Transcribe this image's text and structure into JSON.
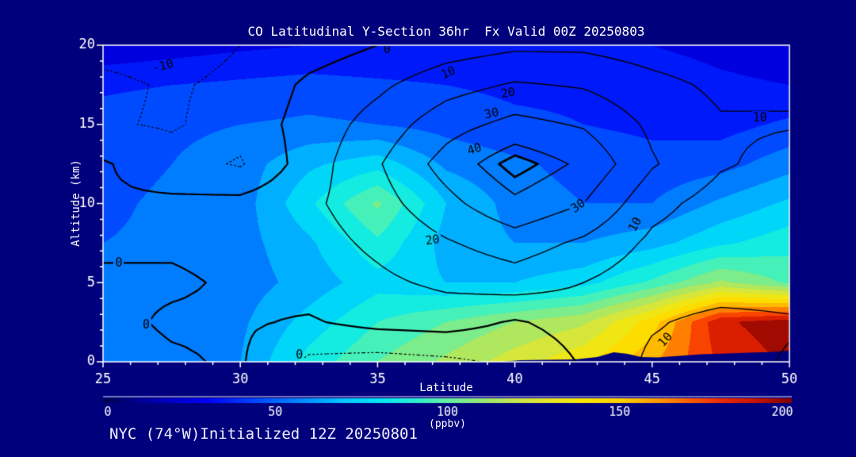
{
  "page": {
    "colors": {
      "background": "#00007d",
      "frame": "#ffffff",
      "text": "#ffffff",
      "contour_line": "#000000",
      "terrain": "#00007d"
    }
  },
  "footer": {
    "text": "NYC (74°W)Initialized 12Z 20250801"
  },
  "chart_data": {
    "type": "heatmap",
    "title": "CO Latitudinal Y-Section 36hr  Fx Valid 00Z 20250803",
    "xlabel": "Latitude",
    "ylabel": "Altitude (km)",
    "x_range": [
      25,
      50
    ],
    "y_range": [
      0,
      20
    ],
    "x_ticks": [
      25,
      30,
      35,
      40,
      45,
      50
    ],
    "x_minor_step": 1,
    "y_ticks": [
      0,
      5,
      10,
      15,
      20
    ],
    "y_minor_step": 1,
    "grid": false,
    "fill_units": "ppbv",
    "fill_band_step": 10,
    "lat_nodes": [
      25,
      27.5,
      30,
      32.5,
      35,
      37.5,
      40,
      42.5,
      45,
      47.5,
      50
    ],
    "alt_nodes": [
      20,
      17.5,
      15,
      12.5,
      10,
      7.5,
      5,
      2.5,
      0
    ],
    "fill_grid": [
      [
        22,
        25,
        28,
        30,
        30,
        30,
        32,
        33,
        30,
        27,
        24
      ],
      [
        38,
        40,
        42,
        44,
        42,
        40,
        38,
        38,
        36,
        32,
        30
      ],
      [
        45,
        48,
        50,
        52,
        50,
        46,
        42,
        40,
        38,
        36,
        42
      ],
      [
        46,
        50,
        55,
        68,
        76,
        58,
        52,
        46,
        43,
        46,
        56
      ],
      [
        48,
        52,
        55,
        78,
        102,
        70,
        56,
        50,
        50,
        62,
        72
      ],
      [
        50,
        52,
        56,
        68,
        88,
        66,
        60,
        60,
        66,
        78,
        86
      ],
      [
        52,
        50,
        55,
        64,
        76,
        70,
        70,
        76,
        92,
        112,
        98
      ],
      [
        55,
        54,
        58,
        74,
        90,
        100,
        110,
        118,
        145,
        188,
        196
      ],
      [
        56,
        58,
        60,
        84,
        100,
        112,
        125,
        138,
        158,
        182,
        192
      ]
    ],
    "contour_grid": [
      [
        -13,
        -14,
        -10,
        -5,
        0,
        5,
        8,
        8,
        5,
        3,
        2
      ],
      [
        -8,
        -11,
        -8,
        2,
        8,
        16,
        21,
        19,
        13,
        8,
        9
      ],
      [
        -9,
        -11,
        -6,
        4,
        14,
        26,
        33,
        29,
        18,
        11,
        10.5
      ],
      [
        1,
        -6,
        -11,
        5,
        19,
        34,
        47,
        38,
        21,
        11,
        7
      ],
      [
        1,
        2,
        3,
        8,
        16,
        27,
        38,
        30,
        13,
        6,
        5
      ],
      [
        1,
        1,
        2,
        6,
        12,
        19,
        25,
        18,
        8,
        4,
        3
      ],
      [
        -1,
        -1,
        1,
        4,
        8,
        12,
        15,
        10,
        4,
        5,
        6
      ],
      [
        -2,
        1,
        1,
        -1,
        3,
        4,
        -1,
        4,
        9,
        13,
        11
      ],
      [
        -3,
        -1,
        1,
        -12,
        -14,
        -12,
        -8,
        1,
        12,
        14,
        9
      ]
    ],
    "contour_levels": [
      -10,
      0,
      10,
      20,
      30,
      40,
      44
    ],
    "contour_labels": [
      {
        "text": "-10",
        "x": 8.7,
        "y": 6.5,
        "rot": -14
      },
      {
        "text": "0",
        "x": 41.4,
        "y": 1.2,
        "rot": 0
      },
      {
        "text": "10",
        "x": 50.3,
        "y": 8.6,
        "rot": -24
      },
      {
        "text": "20",
        "x": 59.0,
        "y": 15.0,
        "rot": -10
      },
      {
        "text": "30",
        "x": 56.6,
        "y": 21.5,
        "rot": -12
      },
      {
        "text": "40",
        "x": 54.1,
        "y": 32.8,
        "rot": -18
      },
      {
        "text": "30",
        "x": 69.2,
        "y": 50.7,
        "rot": -35
      },
      {
        "text": "20",
        "x": 48.0,
        "y": 61.5,
        "rot": -8
      },
      {
        "text": "10",
        "x": 95.7,
        "y": 22.8,
        "rot": 0
      },
      {
        "text": "10",
        "x": 77.5,
        "y": 56.6,
        "rot": -62
      },
      {
        "text": "10",
        "x": 81.9,
        "y": 93.0,
        "rot": -48
      },
      {
        "text": "0",
        "x": 2.3,
        "y": 68.7,
        "rot": 0
      },
      {
        "text": "0",
        "x": 6.3,
        "y": 88.3,
        "rot": 0
      },
      {
        "text": "0",
        "x": 28.6,
        "y": 97.8,
        "rot": 0
      }
    ],
    "terrain": [
      [
        39.55,
        0
      ],
      [
        40.2,
        0.1
      ],
      [
        41.2,
        0.12
      ],
      [
        42.2,
        0.15
      ],
      [
        43.0,
        0.3
      ],
      [
        43.6,
        0.6
      ],
      [
        44.1,
        0.5
      ],
      [
        44.6,
        0.3
      ],
      [
        45.2,
        0.28
      ],
      [
        46.0,
        0.38
      ],
      [
        46.8,
        0.48
      ],
      [
        47.6,
        0.52
      ],
      [
        48.5,
        0.58
      ],
      [
        49.3,
        0.62
      ],
      [
        50,
        0.7
      ]
    ],
    "colormap": [
      [
        0,
        "#00004b"
      ],
      [
        10,
        "#000090"
      ],
      [
        20,
        "#0000c8"
      ],
      [
        30,
        "#0000f5"
      ],
      [
        40,
        "#0032ff"
      ],
      [
        50,
        "#0064ff"
      ],
      [
        60,
        "#0096ff"
      ],
      [
        70,
        "#00c8ff"
      ],
      [
        80,
        "#00e6f0"
      ],
      [
        90,
        "#28f0d2"
      ],
      [
        100,
        "#64f0a0"
      ],
      [
        110,
        "#96e873"
      ],
      [
        120,
        "#c8e64b"
      ],
      [
        130,
        "#e6e628"
      ],
      [
        140,
        "#fae600"
      ],
      [
        150,
        "#ffd200"
      ],
      [
        160,
        "#ffa000"
      ],
      [
        170,
        "#ff5f00"
      ],
      [
        180,
        "#f02800"
      ],
      [
        190,
        "#c31400"
      ],
      [
        200,
        "#7d0000"
      ]
    ],
    "colorbar": {
      "min": 0,
      "max": 200,
      "ticks": [
        0,
        50,
        100,
        150,
        200
      ],
      "label": "(ppbv)"
    }
  }
}
